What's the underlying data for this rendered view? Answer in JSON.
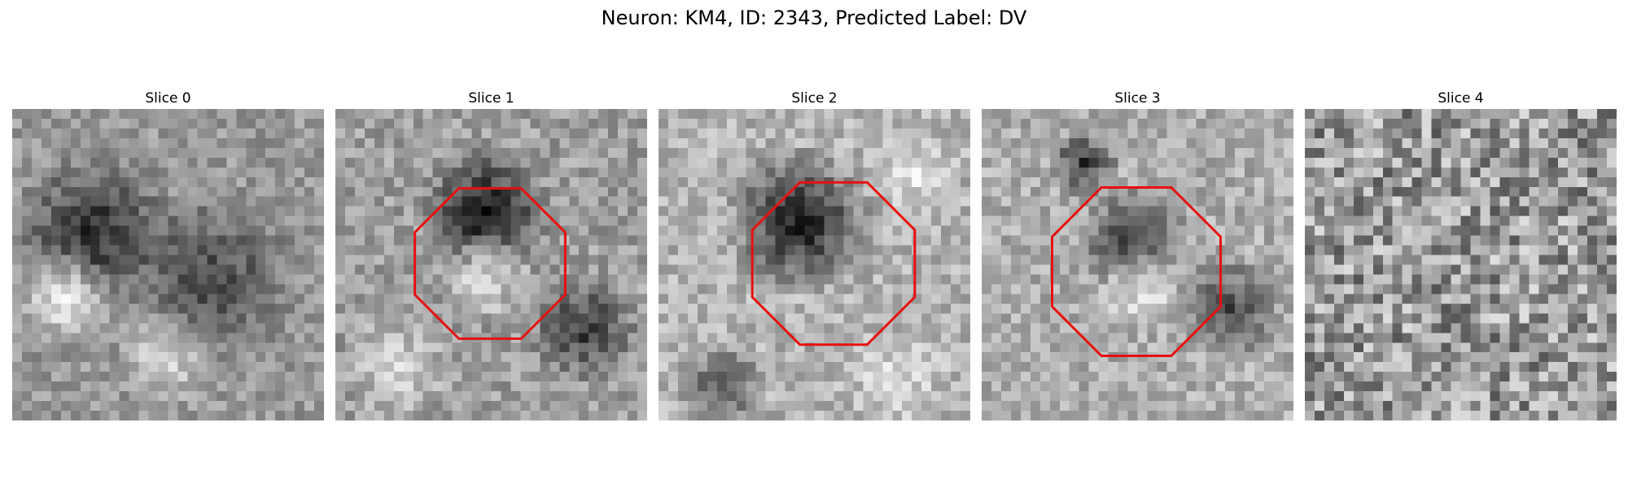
{
  "figure": {
    "title": "Neuron: KM4, ID: 2343, Predicted Label: DV",
    "roi_color": "#e61010"
  },
  "panels": [
    {
      "title": "Slice 0",
      "has_roi": false,
      "seed": 11
    },
    {
      "title": "Slice 1",
      "has_roi": true,
      "seed": 23
    },
    {
      "title": "Slice 2",
      "has_roi": true,
      "seed": 37
    },
    {
      "title": "Slice 3",
      "has_roi": true,
      "seed": 53
    },
    {
      "title": "Slice 4",
      "has_roi": false,
      "seed": 71
    }
  ]
}
